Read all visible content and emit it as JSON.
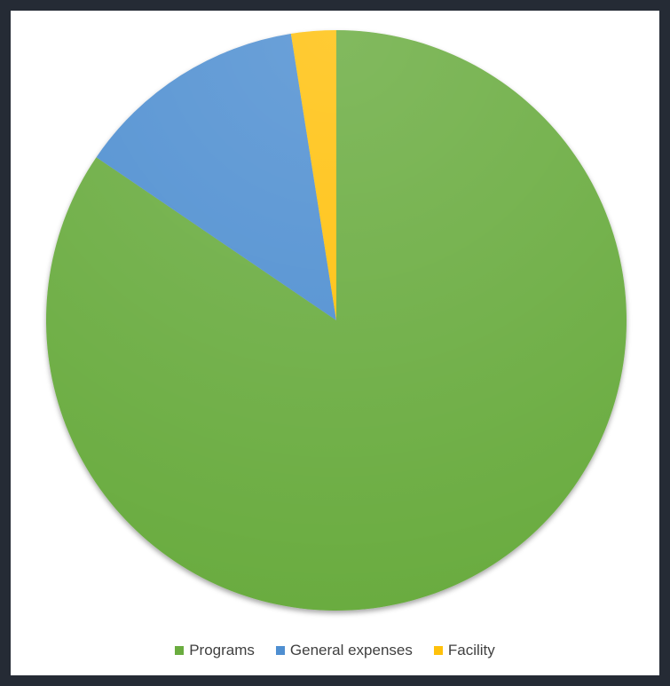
{
  "chart_data": {
    "type": "pie",
    "title": "",
    "start_angle_deg": 0,
    "direction": "clockwise",
    "series": [
      {
        "values": [
          84.5,
          13.0,
          2.5
        ]
      }
    ],
    "categories": [
      "Programs",
      "General expenses",
      "Facility"
    ],
    "colors": [
      "#6aac3f",
      "#4f8fd1",
      "#ffc10b"
    ],
    "legend_position": "bottom"
  }
}
